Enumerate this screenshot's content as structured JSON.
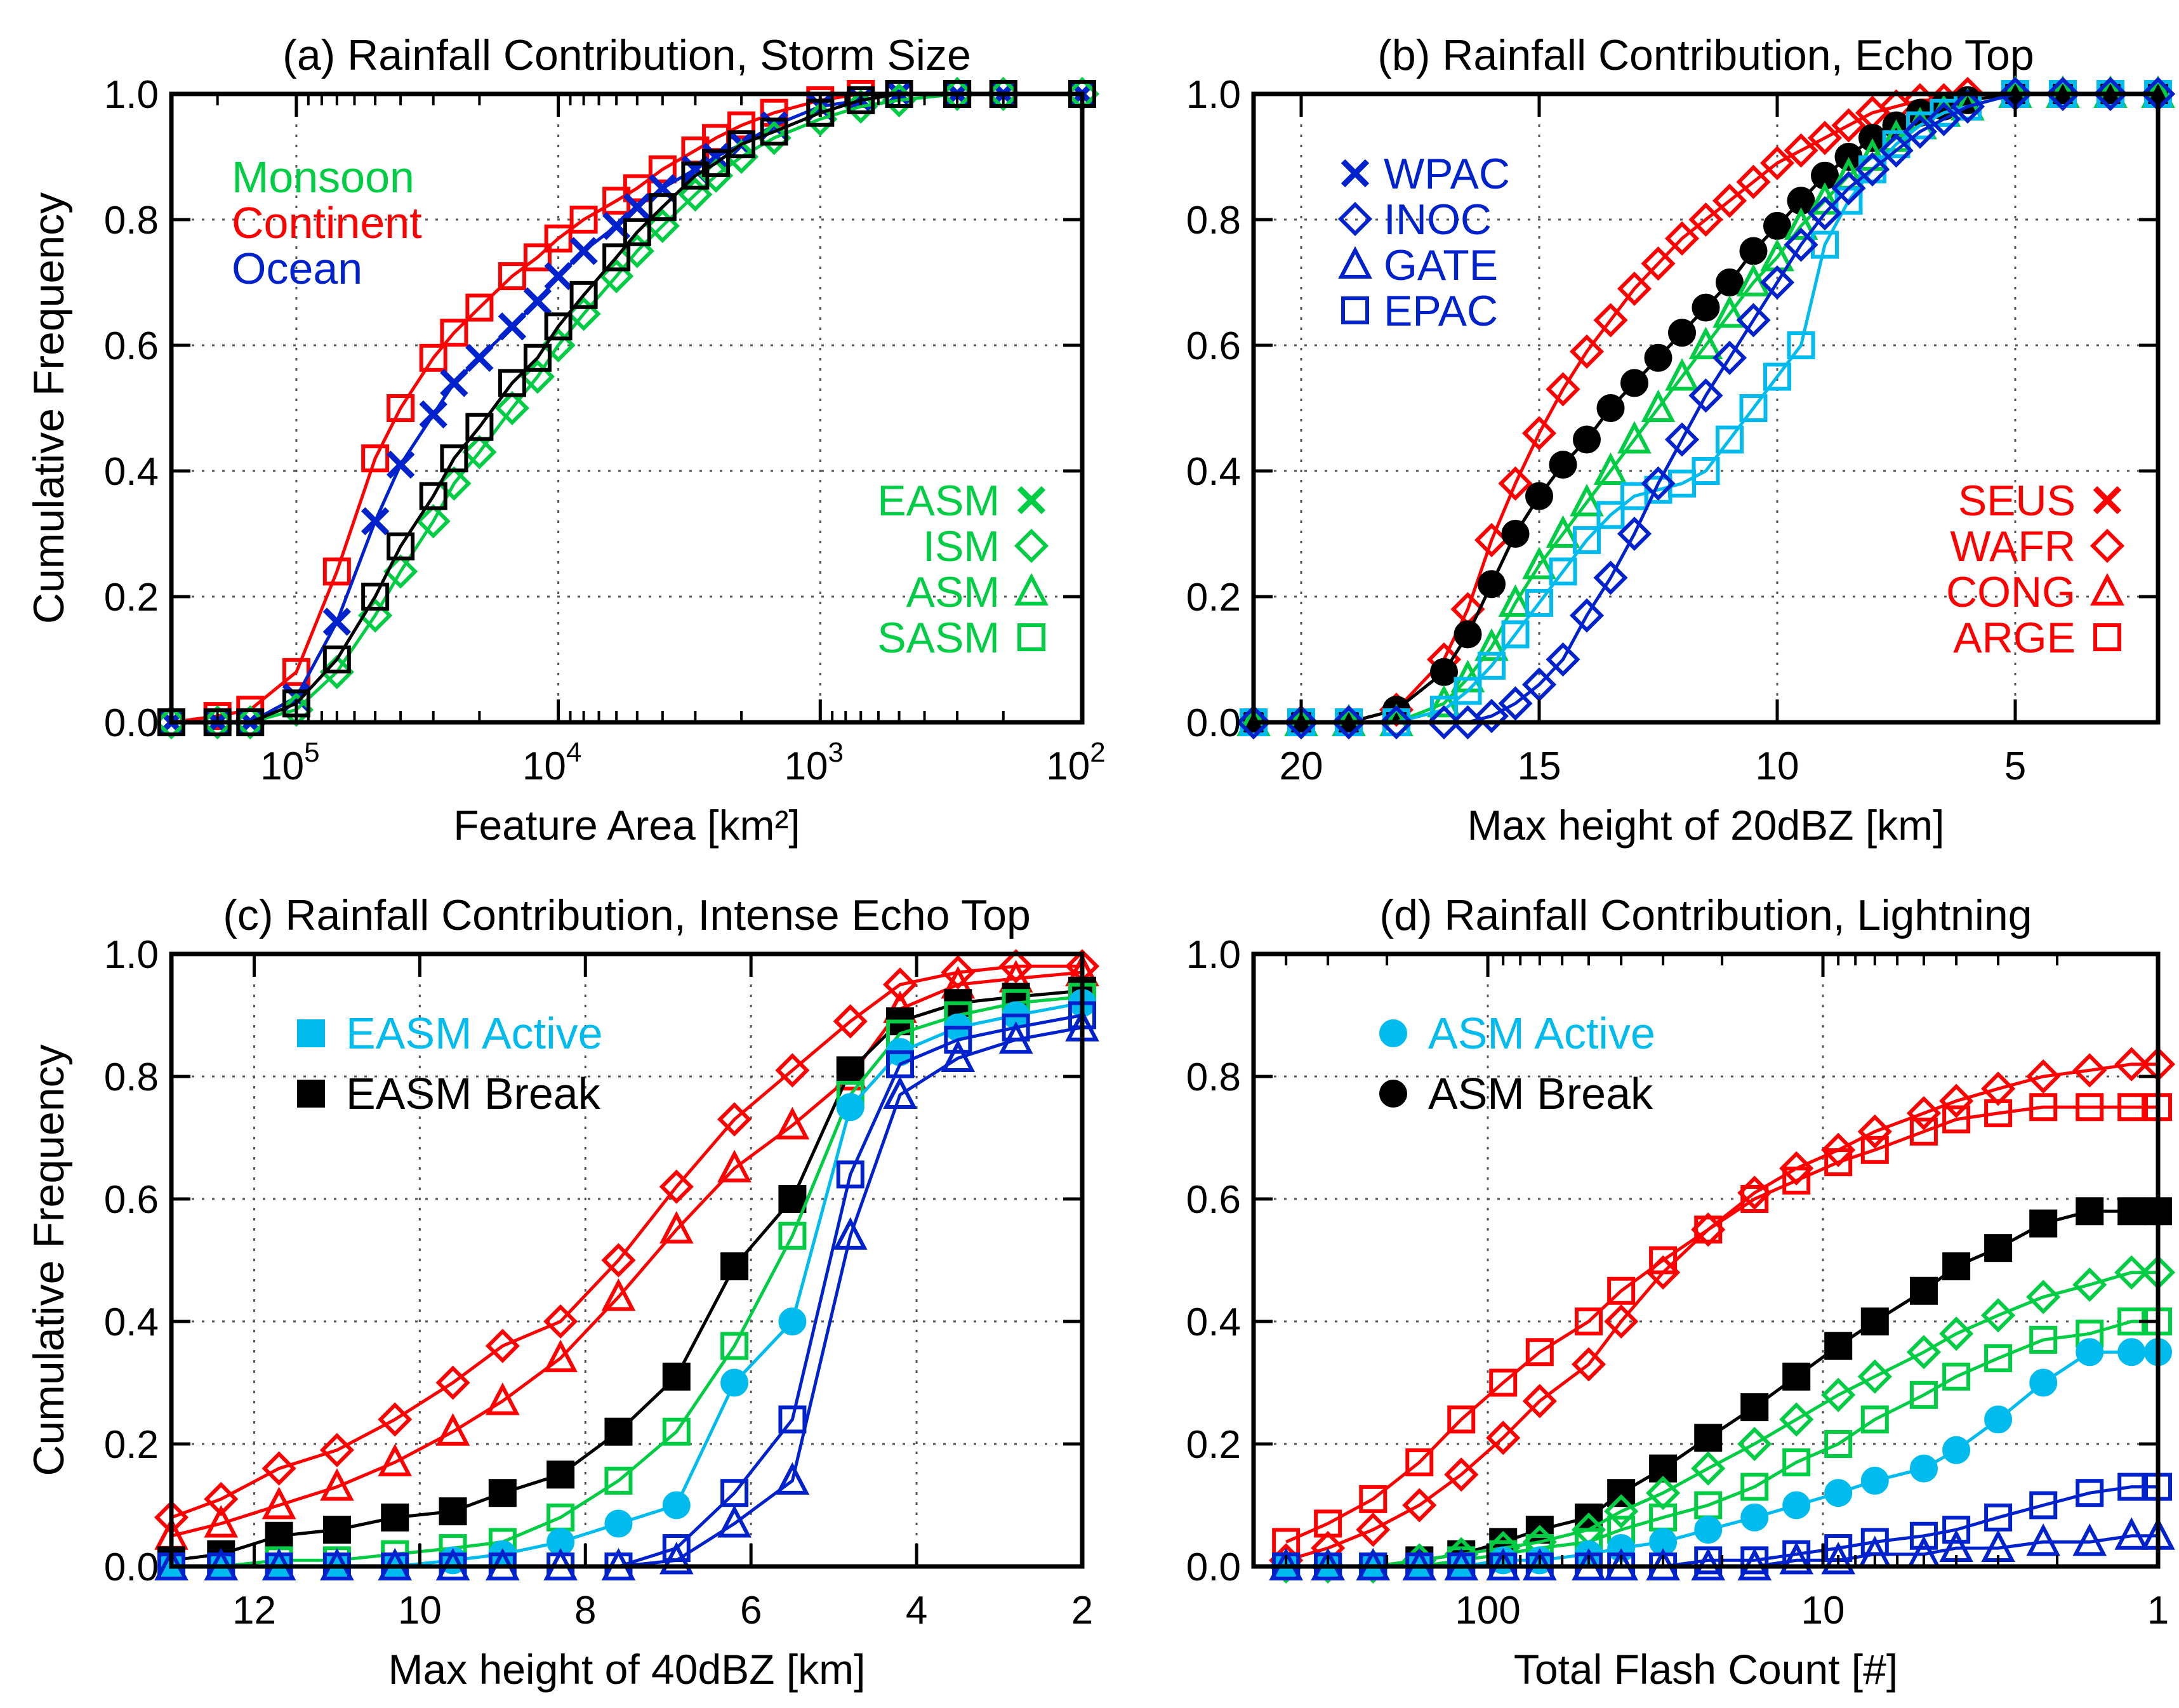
{
  "colors": {
    "monsoon": "#00cc44",
    "continent": "#ff0000",
    "ocean": "#0022cc",
    "active": "#00bbee",
    "break": "#000000"
  },
  "chart_data": [
    {
      "type": "line",
      "panel": "a",
      "title": "(a) Rainfall Contribution, Storm Size",
      "xlabel": "Feature Area [km²]",
      "ylabel": "Cumulative Frequency",
      "xscale": "log",
      "xreversed": true,
      "xlim": [
        300000,
        100
      ],
      "ylim": [
        0,
        1
      ],
      "yticks": [
        "0.0",
        "0.2",
        "0.4",
        "0.6",
        "0.8",
        "1.0"
      ],
      "xticks": [
        {
          "v": 100000,
          "b": "10",
          "e": "5"
        },
        {
          "v": 10000,
          "b": "10",
          "e": "4"
        },
        {
          "v": 1000,
          "b": "10",
          "e": "3"
        },
        {
          "v": 100,
          "b": "10",
          "e": "2"
        }
      ],
      "grid": true,
      "text_legend": [
        "Monsoon",
        "Continent",
        "Ocean"
      ],
      "marker_legend": [
        {
          "label": "EASM",
          "marker": "x"
        },
        {
          "label": "ISM",
          "marker": "diamond"
        },
        {
          "label": "ASM",
          "marker": "triangle"
        },
        {
          "label": "SASM",
          "marker": "square"
        }
      ],
      "legend_placement": "top-left and right",
      "x": [
        300000,
        200000,
        150000,
        100000,
        70000,
        50000,
        40000,
        30000,
        25000,
        20000,
        15000,
        12000,
        10000,
        8000,
        6000,
        5000,
        4000,
        3000,
        2500,
        2000,
        1500,
        1000,
        700,
        500,
        300,
        200,
        100
      ],
      "series": [
        {
          "group": "continent",
          "marker": "square",
          "values": [
            0.0,
            0.01,
            0.02,
            0.08,
            0.24,
            0.42,
            0.5,
            0.58,
            0.62,
            0.66,
            0.71,
            0.74,
            0.77,
            0.8,
            0.83,
            0.85,
            0.88,
            0.91,
            0.93,
            0.95,
            0.97,
            0.99,
            1.0,
            1.0,
            1.0,
            1.0,
            1.0
          ]
        },
        {
          "group": "ocean",
          "marker": "x",
          "values": [
            0.0,
            0.0,
            0.0,
            0.04,
            0.16,
            0.32,
            0.41,
            0.49,
            0.54,
            0.58,
            0.63,
            0.67,
            0.71,
            0.75,
            0.79,
            0.82,
            0.85,
            0.88,
            0.9,
            0.92,
            0.95,
            0.98,
            0.99,
            1.0,
            1.0,
            1.0,
            1.0
          ]
        },
        {
          "group": "monsoon",
          "marker": "diamond",
          "values": [
            0.0,
            0.0,
            0.0,
            0.02,
            0.08,
            0.17,
            0.24,
            0.32,
            0.38,
            0.43,
            0.5,
            0.55,
            0.6,
            0.65,
            0.71,
            0.75,
            0.79,
            0.84,
            0.87,
            0.9,
            0.93,
            0.96,
            0.98,
            0.99,
            1.0,
            1.0,
            1.0
          ]
        },
        {
          "group": "break",
          "marker": "square",
          "values": [
            0.0,
            0.0,
            0.0,
            0.03,
            0.1,
            0.2,
            0.28,
            0.36,
            0.42,
            0.47,
            0.54,
            0.58,
            0.63,
            0.68,
            0.74,
            0.78,
            0.82,
            0.87,
            0.89,
            0.92,
            0.94,
            0.97,
            0.99,
            1.0,
            1.0,
            1.0,
            1.0
          ]
        }
      ]
    },
    {
      "type": "line",
      "panel": "b",
      "title": "(b) Rainfall Contribution, Echo Top",
      "xlabel": "Max height of 20dBZ [km]",
      "ylabel": "",
      "xscale": "linear",
      "xreversed": true,
      "xlim": [
        21,
        2
      ],
      "ylim": [
        0,
        1
      ],
      "yticks": [
        "0.0",
        "0.2",
        "0.4",
        "0.6",
        "0.8",
        "1.0"
      ],
      "xticks": [
        {
          "v": 20,
          "t": "20"
        },
        {
          "v": 15,
          "t": "15"
        },
        {
          "v": 10,
          "t": "10"
        },
        {
          "v": 5,
          "t": "5"
        }
      ],
      "grid": true,
      "marker_legend": [
        {
          "label": "WPAC",
          "marker": "x",
          "group": "ocean"
        },
        {
          "label": "INOC",
          "marker": "diamond",
          "group": "ocean"
        },
        {
          "label": "GATE",
          "marker": "triangle",
          "group": "ocean"
        },
        {
          "label": "EPAC",
          "marker": "square",
          "group": "ocean"
        },
        {
          "label": "SEUS",
          "marker": "x",
          "group": "continent"
        },
        {
          "label": "WAFR",
          "marker": "diamond",
          "group": "continent"
        },
        {
          "label": "CONG",
          "marker": "triangle",
          "group": "continent"
        },
        {
          "label": "ARGE",
          "marker": "square",
          "group": "continent"
        }
      ],
      "legend_placement": "top-left and right",
      "x": [
        21,
        20,
        19,
        18,
        17,
        16.5,
        16,
        15.5,
        15,
        14.5,
        14,
        13.5,
        13,
        12.5,
        12,
        11.5,
        11,
        10.5,
        10,
        9.5,
        9,
        8.5,
        8,
        7.5,
        7,
        6.5,
        6,
        5,
        4,
        3,
        2
      ],
      "series": [
        {
          "group": "continent",
          "marker": "diamond",
          "values": [
            0.0,
            0.0,
            0.0,
            0.02,
            0.1,
            0.18,
            0.29,
            0.38,
            0.46,
            0.53,
            0.59,
            0.64,
            0.69,
            0.73,
            0.77,
            0.8,
            0.83,
            0.86,
            0.89,
            0.91,
            0.93,
            0.95,
            0.97,
            0.98,
            0.99,
            0.99,
            1.0,
            1.0,
            1.0,
            1.0,
            1.0
          ]
        },
        {
          "group": "break",
          "marker": "circle",
          "values": [
            0.0,
            0.0,
            0.0,
            0.02,
            0.08,
            0.14,
            0.22,
            0.3,
            0.36,
            0.41,
            0.45,
            0.5,
            0.54,
            0.58,
            0.62,
            0.66,
            0.7,
            0.75,
            0.79,
            0.83,
            0.87,
            0.9,
            0.93,
            0.95,
            0.97,
            0.98,
            0.99,
            1.0,
            1.0,
            1.0,
            1.0
          ]
        },
        {
          "group": "monsoon",
          "marker": "triangle",
          "values": [
            0.0,
            0.0,
            0.0,
            0.0,
            0.03,
            0.07,
            0.12,
            0.19,
            0.25,
            0.3,
            0.35,
            0.4,
            0.45,
            0.5,
            0.55,
            0.6,
            0.65,
            0.7,
            0.74,
            0.79,
            0.83,
            0.87,
            0.9,
            0.93,
            0.95,
            0.97,
            0.98,
            1.0,
            1.0,
            1.0,
            1.0
          ]
        },
        {
          "group": "active",
          "marker": "square",
          "values": [
            0.0,
            0.0,
            0.0,
            0.0,
            0.02,
            0.05,
            0.09,
            0.14,
            0.19,
            0.24,
            0.29,
            0.33,
            0.36,
            0.37,
            0.38,
            0.4,
            0.45,
            0.5,
            0.55,
            0.6,
            0.76,
            0.83,
            0.88,
            0.92,
            0.95,
            0.97,
            0.98,
            1.0,
            1.0,
            1.0,
            1.0
          ]
        },
        {
          "group": "ocean",
          "marker": "diamond",
          "values": [
            0.0,
            0.0,
            0.0,
            0.0,
            0.0,
            0.0,
            0.01,
            0.03,
            0.06,
            0.1,
            0.17,
            0.23,
            0.3,
            0.38,
            0.45,
            0.52,
            0.58,
            0.64,
            0.7,
            0.76,
            0.81,
            0.85,
            0.88,
            0.91,
            0.94,
            0.96,
            0.98,
            1.0,
            1.0,
            1.0,
            1.0
          ]
        }
      ]
    },
    {
      "type": "line",
      "panel": "c",
      "title": "(c) Rainfall Contribution, Intense Echo Top",
      "xlabel": "Max height of 40dBZ [km]",
      "ylabel": "Cumulative Frequency",
      "xscale": "linear",
      "xreversed": true,
      "xlim": [
        13,
        2
      ],
      "ylim": [
        0,
        1
      ],
      "yticks": [
        "0.0",
        "0.2",
        "0.4",
        "0.6",
        "0.8",
        "1.0"
      ],
      "xticks": [
        {
          "v": 12,
          "t": "12"
        },
        {
          "v": 10,
          "t": "10"
        },
        {
          "v": 8,
          "t": "8"
        },
        {
          "v": 6,
          "t": "6"
        },
        {
          "v": 4,
          "t": "4"
        },
        {
          "v": 2,
          "t": "2"
        }
      ],
      "grid": true,
      "marker_legend": [
        {
          "label": "EASM Active",
          "marker": "square-filled",
          "group": "active"
        },
        {
          "label": "EASM Break",
          "marker": "square-filled",
          "group": "break"
        }
      ],
      "legend_placement": "top-left",
      "x": [
        13,
        12.4,
        11.7,
        11,
        10.3,
        9.6,
        9,
        8.3,
        7.6,
        6.9,
        6.2,
        5.5,
        4.8,
        4.2,
        3.5,
        2.8,
        2
      ],
      "series": [
        {
          "group": "continent",
          "marker": "diamond",
          "values": [
            0.08,
            0.11,
            0.16,
            0.19,
            0.24,
            0.3,
            0.36,
            0.4,
            0.5,
            0.62,
            0.73,
            0.81,
            0.89,
            0.95,
            0.97,
            0.98,
            0.98
          ]
        },
        {
          "group": "continent",
          "marker": "triangle",
          "values": [
            0.05,
            0.07,
            0.1,
            0.13,
            0.17,
            0.22,
            0.27,
            0.34,
            0.44,
            0.55,
            0.65,
            0.72,
            0.8,
            0.91,
            0.95,
            0.96,
            0.97
          ]
        },
        {
          "group": "break",
          "marker": "square-filled",
          "values": [
            0.01,
            0.02,
            0.05,
            0.06,
            0.08,
            0.09,
            0.12,
            0.15,
            0.22,
            0.31,
            0.49,
            0.6,
            0.81,
            0.89,
            0.92,
            0.93,
            0.94
          ]
        },
        {
          "group": "monsoon",
          "marker": "square",
          "values": [
            0.0,
            0.0,
            0.01,
            0.01,
            0.02,
            0.03,
            0.04,
            0.08,
            0.14,
            0.22,
            0.36,
            0.54,
            0.77,
            0.87,
            0.9,
            0.92,
            0.93
          ]
        },
        {
          "group": "active",
          "marker": "circle",
          "values": [
            0.0,
            0.0,
            0.0,
            0.0,
            0.0,
            0.01,
            0.02,
            0.04,
            0.07,
            0.1,
            0.3,
            0.4,
            0.75,
            0.84,
            0.88,
            0.9,
            0.92
          ]
        },
        {
          "group": "ocean",
          "marker": "triangle",
          "values": [
            0.0,
            0.0,
            0.0,
            0.0,
            0.0,
            0.0,
            0.0,
            0.0,
            0.0,
            0.01,
            0.07,
            0.14,
            0.54,
            0.77,
            0.83,
            0.86,
            0.88
          ]
        },
        {
          "group": "ocean",
          "marker": "square",
          "values": [
            0.0,
            0.0,
            0.0,
            0.0,
            0.0,
            0.0,
            0.0,
            0.0,
            0.0,
            0.03,
            0.12,
            0.24,
            0.64,
            0.82,
            0.86,
            0.88,
            0.9
          ]
        }
      ]
    },
    {
      "type": "line",
      "panel": "d",
      "title": "(d) Rainfall Contribution, Lightning",
      "xlabel": "Total Flash Count [#]",
      "ylabel": "",
      "xscale": "log",
      "xreversed": true,
      "xlim": [
        500,
        1
      ],
      "ylim": [
        0,
        1
      ],
      "yticks": [
        "0.0",
        "0.2",
        "0.4",
        "0.6",
        "0.8",
        "1.0"
      ],
      "xticks": [
        {
          "v": 100,
          "t": "100"
        },
        {
          "v": 10,
          "t": "10"
        },
        {
          "v": 1,
          "t": "1"
        }
      ],
      "grid": true,
      "marker_legend": [
        {
          "label": "ASM Active",
          "marker": "circle-filled",
          "group": "active"
        },
        {
          "label": "ASM Break",
          "marker": "circle-filled",
          "group": "break"
        }
      ],
      "legend_placement": "top-left",
      "x": [
        400,
        300,
        220,
        160,
        120,
        90,
        70,
        50,
        40,
        30,
        22,
        16,
        12,
        9,
        7,
        5,
        4,
        3,
        2.2,
        1.6,
        1.2,
        1
      ],
      "series": [
        {
          "group": "continent",
          "marker": "diamond",
          "values": [
            0.01,
            0.03,
            0.06,
            0.1,
            0.15,
            0.21,
            0.27,
            0.33,
            0.4,
            0.48,
            0.55,
            0.61,
            0.65,
            0.68,
            0.71,
            0.74,
            0.76,
            0.78,
            0.8,
            0.81,
            0.82,
            0.82
          ]
        },
        {
          "group": "continent",
          "marker": "square",
          "values": [
            0.04,
            0.07,
            0.11,
            0.17,
            0.24,
            0.3,
            0.35,
            0.4,
            0.45,
            0.5,
            0.55,
            0.6,
            0.63,
            0.66,
            0.68,
            0.71,
            0.73,
            0.74,
            0.75,
            0.75,
            0.75,
            0.75
          ]
        },
        {
          "group": "break",
          "marker": "square-filled",
          "values": [
            0.0,
            0.0,
            0.0,
            0.01,
            0.02,
            0.04,
            0.06,
            0.08,
            0.12,
            0.16,
            0.21,
            0.26,
            0.31,
            0.36,
            0.4,
            0.45,
            0.49,
            0.52,
            0.56,
            0.58,
            0.58,
            0.58
          ]
        },
        {
          "group": "monsoon",
          "marker": "diamond",
          "values": [
            0.0,
            0.0,
            0.0,
            0.01,
            0.02,
            0.03,
            0.04,
            0.06,
            0.09,
            0.12,
            0.16,
            0.2,
            0.24,
            0.28,
            0.31,
            0.35,
            0.38,
            0.41,
            0.44,
            0.46,
            0.48,
            0.48
          ]
        },
        {
          "group": "monsoon",
          "marker": "square",
          "values": [
            0.0,
            0.0,
            0.0,
            0.0,
            0.01,
            0.02,
            0.03,
            0.04,
            0.06,
            0.08,
            0.1,
            0.13,
            0.17,
            0.2,
            0.24,
            0.28,
            0.31,
            0.34,
            0.37,
            0.38,
            0.4,
            0.4
          ]
        },
        {
          "group": "active",
          "marker": "circle-filled",
          "values": [
            0.0,
            0.0,
            0.0,
            0.0,
            0.0,
            0.01,
            0.01,
            0.02,
            0.03,
            0.04,
            0.06,
            0.08,
            0.1,
            0.12,
            0.14,
            0.16,
            0.19,
            0.24,
            0.3,
            0.35,
            0.35,
            0.35
          ]
        },
        {
          "group": "ocean",
          "marker": "square",
          "values": [
            0.0,
            0.0,
            0.0,
            0.0,
            0.0,
            0.0,
            0.0,
            0.0,
            0.0,
            0.0,
            0.01,
            0.01,
            0.02,
            0.03,
            0.04,
            0.05,
            0.06,
            0.08,
            0.1,
            0.12,
            0.13,
            0.13
          ]
        },
        {
          "group": "ocean",
          "marker": "triangle",
          "values": [
            0.0,
            0.0,
            0.0,
            0.0,
            0.0,
            0.0,
            0.0,
            0.0,
            0.0,
            0.0,
            0.0,
            0.0,
            0.01,
            0.01,
            0.02,
            0.02,
            0.03,
            0.03,
            0.04,
            0.04,
            0.05,
            0.05
          ]
        }
      ]
    }
  ]
}
